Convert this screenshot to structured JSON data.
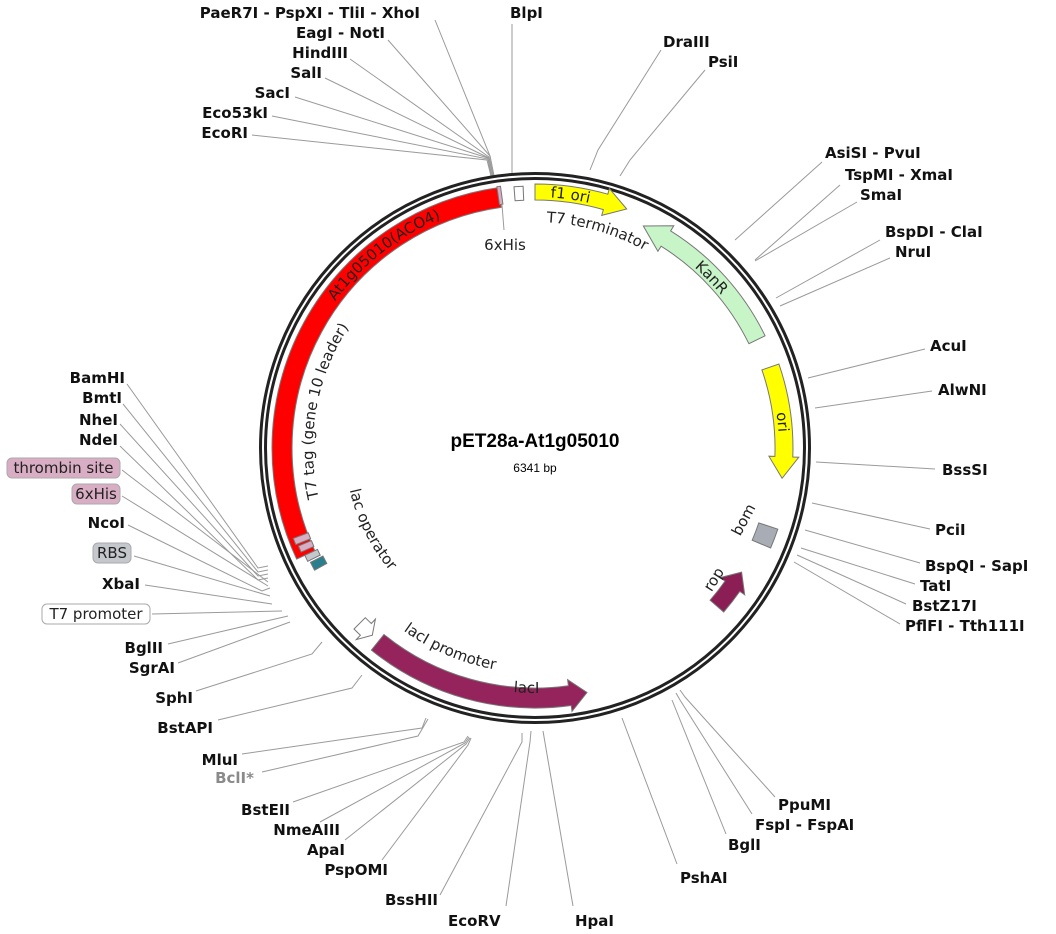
{
  "plasmid": {
    "name": "pET28a-At1g05010",
    "length": "6341 bp"
  },
  "colors": {
    "insert": "#ff0000",
    "origin": "#ffff00",
    "kanr": "#c8f5c8",
    "lacI": "#94245b",
    "rop": "#8b1e55",
    "bom": "#a8adb5",
    "lac_operator": "#2a7f8f",
    "tag": "#d9aec4",
    "rbs_box": "#c4c7cc",
    "promoter_box": "#ffffff"
  },
  "features": {
    "insert": "At1g05010(ACO4)",
    "t7tag": "T7 tag (gene 10 leader)",
    "lac_operator": "lac operator",
    "lacI_promoter": "lacI promoter",
    "lacI": "lacI",
    "kanr": "KanR",
    "ori": "ori",
    "f1ori": "f1 ori",
    "t7term": "T7 terminator",
    "his_top": "6xHis",
    "bom": "bom",
    "rop": "rop"
  },
  "enzymes": [
    "PaeR7I - PspXI - TliI - XhoI",
    "EagI - NotI",
    "HindIII",
    "SalI",
    "SacI",
    "Eco53kI",
    "EcoRI",
    "BlpI",
    "DraIII",
    "PsiI",
    "AsiSI - PvuI",
    "TspMI - XmaI",
    "SmaI",
    "BspDI - ClaI",
    "NruI",
    "AcuI",
    "AlwNI",
    "BssSI",
    "PciI",
    "BspQI - SapI",
    "TatI",
    "BstZ17I",
    "PflFI - Tth111I",
    "PpuMI",
    "FspI - FspAI",
    "BglI",
    "PshAI",
    "HpaI",
    "EcoRV",
    "BssHII",
    "PspOMI",
    "ApaI",
    "NmeAIII",
    "BstEII",
    "BclI*",
    "MluI",
    "BstAPI",
    "SphI",
    "SgrAI",
    "BglII",
    "XbaI",
    "NcoI",
    "NdeI",
    "NheI",
    "BmtI",
    "BamHI"
  ],
  "boxed_labels": [
    {
      "text": "T7 promoter",
      "style": "white"
    },
    {
      "text": "RBS",
      "style": "grey"
    },
    {
      "text": "6xHis",
      "style": "pink"
    },
    {
      "text": "thrombin site",
      "style": "pink"
    }
  ]
}
